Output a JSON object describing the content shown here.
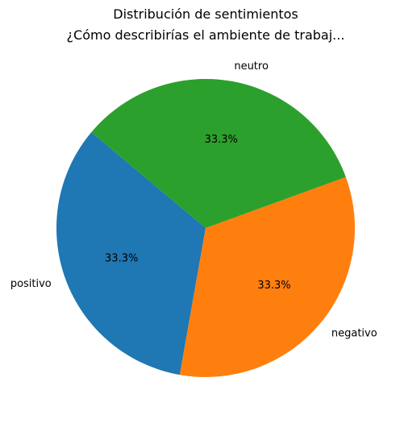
{
  "chart_data": {
    "type": "pie",
    "title": "Distribución de sentimientos\n¿Cómo describirías el ambiente de trabaj...",
    "title_lines": [
      "Distribución de sentimientos",
      "¿Cómo describirías el ambiente de trabaj..."
    ],
    "slices": [
      {
        "label": "positivo",
        "value": 33.3,
        "pct_label": "33.3%",
        "color": "#1f77b4"
      },
      {
        "label": "negativo",
        "value": 33.3,
        "pct_label": "33.3%",
        "color": "#ff7f0e"
      },
      {
        "label": "neutro",
        "value": 33.3,
        "pct_label": "33.3%",
        "color": "#2ca02c"
      }
    ],
    "start_angle_deg": 140,
    "direction": "counterclockwise",
    "legend": "none"
  }
}
